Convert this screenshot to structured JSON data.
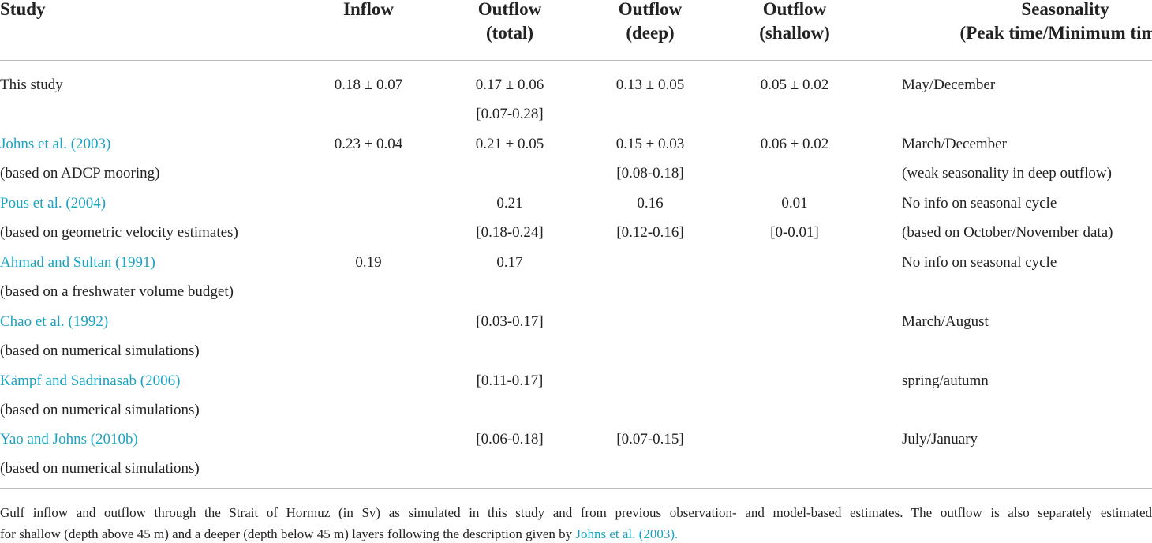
{
  "header": {
    "study": [
      "Study"
    ],
    "inflow": [
      "Inflow"
    ],
    "outflow_total": [
      "Outflow",
      "(total)"
    ],
    "outflow_deep": [
      "Outflow",
      "(deep)"
    ],
    "outflow_shallow": [
      "Outflow",
      "(shallow)"
    ],
    "seasonality": [
      "Seasonality",
      "(Peak time/Minimum time)"
    ]
  },
  "rows": [
    {
      "study": "This study",
      "inflow": [
        "0.18 ± 0.07"
      ],
      "outflow_total": [
        "0.17 ± 0.06",
        "[0.07-0.28]"
      ],
      "outflow_deep": [
        "0.13 ± 0.05"
      ],
      "outflow_shallow": [
        "0.05 ± 0.02"
      ],
      "seasonality": [
        "May/December"
      ]
    },
    {
      "study": "Johns et al. (2003)",
      "basis": "(based on ADCP mooring)",
      "inflow": [
        "0.23 ± 0.04"
      ],
      "outflow_total": [
        "0.21 ± 0.05"
      ],
      "outflow_deep": [
        "0.15 ± 0.03",
        "[0.08-0.18]"
      ],
      "outflow_shallow": [
        "0.06 ± 0.02"
      ],
      "seasonality": [
        "March/December",
        "(weak seasonality in deep outflow)"
      ]
    },
    {
      "study": "Pous et al. (2004)",
      "basis": "(based on geometric velocity estimates)",
      "outflow_total": [
        "0.21",
        "[0.18-0.24]"
      ],
      "outflow_deep": [
        "0.16",
        "[0.12-0.16]"
      ],
      "outflow_shallow": [
        "0.01",
        "[0-0.01]"
      ],
      "seasonality": [
        "No info on seasonal cycle",
        "(based on October/November data)"
      ]
    },
    {
      "study": "Ahmad and Sultan (1991)",
      "basis": "(based on a freshwater volume budget)",
      "inflow": [
        "0.19"
      ],
      "outflow_total": [
        "0.17"
      ],
      "seasonality": [
        "No info on seasonal cycle"
      ]
    },
    {
      "study": "Chao et al. (1992)",
      "basis": "(based on numerical simulations)",
      "outflow_total": [
        "[0.03-0.17]"
      ],
      "seasonality": [
        "March/August"
      ]
    },
    {
      "study": "Kämpf and Sadrinasab (2006)",
      "basis": "(based on numerical simulations)",
      "outflow_total": [
        "[0.11-0.17]"
      ],
      "seasonality": [
        "spring/autumn"
      ]
    },
    {
      "study": "Yao and Johns (2010b)",
      "basis": "(based on numerical simulations)",
      "outflow_total": [
        "[0.06-0.18]"
      ],
      "outflow_deep": [
        "[0.07-0.15]"
      ],
      "seasonality": [
        "July/January"
      ]
    }
  ],
  "caption": {
    "lines": [
      "Gulf inflow and outflow through the Strait of Hormuz (in Sv) as simulated in this study and from previous observation- and model-based estimates. The outflow is also separately estimated",
      "for shallow (depth above 45 m) and a deeper (depth below 45 m) layers following the description given by"
    ],
    "link": "Johns et al. (2003)."
  }
}
